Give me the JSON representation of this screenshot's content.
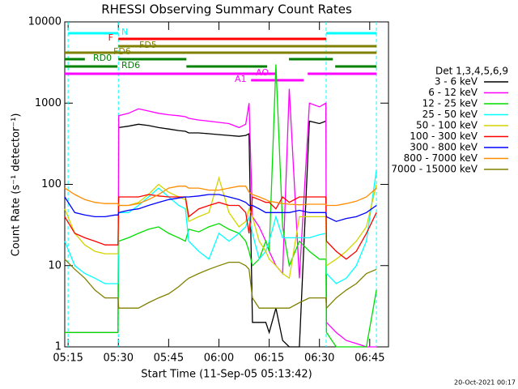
{
  "chart_data": {
    "type": "line",
    "title": "RHESSI Observing Summary Count Rates",
    "xlabel": "Start Time (11-Sep-05 05:13:42)",
    "ylabel": "Count Rate (s⁻¹ detector⁻¹)",
    "legend_title": "Det 1,3,4,5,6,9",
    "timestamp": "20-Oct-2021 00:17",
    "yscale": "log",
    "xlim": [
      14,
      110.6
    ],
    "ylim": [
      1,
      10000
    ],
    "yticks": [
      1,
      10,
      100,
      1000,
      10000
    ],
    "xticks": [
      {
        "value": 15,
        "label": "05:15"
      },
      {
        "value": 30,
        "label": "05:30"
      },
      {
        "value": 45,
        "label": "05:45"
      },
      {
        "value": 60,
        "label": "06:00"
      },
      {
        "value": 75,
        "label": "06:15"
      },
      {
        "value": 90,
        "label": "06:30"
      },
      {
        "value": 105,
        "label": "06:45"
      }
    ],
    "x": [
      14,
      17,
      20,
      23,
      26,
      29,
      29.9,
      30.1,
      33,
      36,
      39,
      42,
      45,
      48,
      50,
      51,
      54,
      57,
      60,
      63,
      66,
      68,
      69,
      70,
      72,
      74,
      75,
      77,
      79,
      81,
      84,
      87,
      90,
      91.9,
      92.1,
      95,
      98,
      101,
      104,
      107
    ],
    "series": [
      {
        "name": "3 - 6 keV",
        "color": "#000000",
        "values": [
          null,
          null,
          null,
          null,
          null,
          null,
          null,
          500,
          520,
          550,
          530,
          500,
          480,
          460,
          450,
          430,
          430,
          420,
          410,
          400,
          390,
          400,
          420,
          2,
          2,
          2,
          1.5,
          3,
          1.2,
          1,
          1,
          600,
          560,
          600,
          null,
          null,
          null,
          null,
          null,
          null
        ]
      },
      {
        "name": "6 - 12 keV",
        "color": "#ff00ff",
        "values": [
          1.5,
          1.5,
          1.5,
          1.5,
          1.5,
          1.5,
          1.5,
          700,
          750,
          850,
          800,
          750,
          720,
          700,
          680,
          650,
          620,
          600,
          580,
          560,
          500,
          550,
          1000,
          40,
          30,
          20,
          15,
          10,
          8,
          1500,
          7,
          1000,
          900,
          1000,
          2,
          1.5,
          1.2,
          1.1,
          1,
          1
        ]
      },
      {
        "name": "12 - 25 keV",
        "color": "#00dd00",
        "values": [
          1.5,
          1.5,
          1.5,
          1.5,
          1.5,
          1.5,
          1.5,
          20,
          22,
          25,
          28,
          30,
          25,
          22,
          20,
          28,
          26,
          30,
          33,
          28,
          25,
          20,
          15,
          10,
          12,
          20,
          15,
          3000,
          30,
          10,
          20,
          15,
          12,
          12,
          1.5,
          1,
          1,
          1,
          1,
          5
        ]
      },
      {
        "name": "25 - 50 keV",
        "color": "#00ffff",
        "values": [
          20,
          10,
          8,
          7,
          6,
          6,
          6,
          45,
          45,
          55,
          70,
          90,
          70,
          55,
          50,
          20,
          15,
          12,
          25,
          20,
          25,
          30,
          40,
          25,
          12,
          15,
          20,
          40,
          22,
          22,
          22,
          22,
          24,
          25,
          8,
          6,
          7,
          10,
          20,
          150
        ]
      },
      {
        "name": "50 - 100 keV",
        "color": "#d4d400",
        "values": [
          50,
          25,
          18,
          15,
          14,
          14,
          14,
          55,
          55,
          60,
          75,
          100,
          80,
          70,
          65,
          35,
          40,
          45,
          120,
          45,
          30,
          35,
          50,
          40,
          20,
          15,
          12,
          10,
          8,
          7,
          40,
          40,
          40,
          40,
          10,
          12,
          15,
          20,
          30,
          100
        ]
      },
      {
        "name": "100 - 300 keV",
        "color": "#ff0000",
        "values": [
          40,
          25,
          22,
          20,
          18,
          18,
          18,
          70,
          70,
          70,
          75,
          72,
          70,
          70,
          70,
          40,
          50,
          55,
          60,
          55,
          55,
          45,
          25,
          70,
          65,
          60,
          60,
          50,
          70,
          60,
          70,
          70,
          70,
          70,
          20,
          15,
          12,
          15,
          25,
          45
        ]
      },
      {
        "name": "300 - 800 keV",
        "color": "#0000ff",
        "values": [
          70,
          45,
          42,
          40,
          40,
          42,
          42,
          45,
          48,
          50,
          55,
          60,
          65,
          68,
          70,
          70,
          72,
          75,
          75,
          70,
          65,
          60,
          55,
          55,
          50,
          45,
          45,
          45,
          45,
          45,
          48,
          45,
          45,
          45,
          40,
          35,
          38,
          40,
          45,
          55
        ]
      },
      {
        "name": "800 - 7000 keV",
        "color": "#ff8c00",
        "values": [
          90,
          75,
          65,
          60,
          58,
          58,
          58,
          55,
          55,
          58,
          65,
          75,
          90,
          95,
          95,
          90,
          90,
          85,
          85,
          90,
          95,
          95,
          80,
          75,
          70,
          65,
          62,
          60,
          58,
          57,
          56,
          57,
          57,
          57,
          55,
          55,
          58,
          62,
          70,
          90
        ]
      },
      {
        "name": "7000 - 15000 keV",
        "color": "#808000",
        "values": [
          12,
          9,
          7,
          5,
          4,
          4,
          4,
          3,
          3,
          3,
          3.5,
          4,
          4.5,
          5.5,
          6.5,
          7,
          8,
          9,
          10,
          11,
          11,
          10,
          9,
          4,
          3,
          3,
          3,
          3,
          3,
          3,
          3.5,
          4,
          4,
          4,
          3,
          4,
          5,
          6,
          8,
          9
        ]
      }
    ],
    "flags": [
      {
        "name": "N",
        "color": "#00ffff",
        "segments": [
          [
            15,
            30
          ],
          [
            92,
            107
          ]
        ]
      },
      {
        "name": "F",
        "color": "#ff0000",
        "segments": [
          [
            30,
            92
          ]
        ]
      },
      {
        "name": "FD5",
        "color": "#808000",
        "segments": [
          [
            30,
            107
          ]
        ]
      },
      {
        "name": "FD6",
        "color": "#808000",
        "segments": [
          [
            14,
            107
          ]
        ]
      },
      {
        "name": "RD0",
        "color": "#008000",
        "segments": [
          [
            14,
            20
          ],
          [
            30,
            50.3
          ],
          [
            80.9,
            94
          ]
        ]
      },
      {
        "name": "RD6",
        "color": "#008000",
        "segments": [
          [
            14,
            29.7
          ],
          [
            50.3,
            74.4
          ],
          [
            94.7,
            107
          ]
        ]
      },
      {
        "name": "AO",
        "color": "#ff00ff",
        "segments": [
          [
            14,
            76.8
          ],
          [
            86.5,
            107
          ]
        ]
      },
      {
        "name": "A1",
        "color": "#ff00ff",
        "segments": [
          [
            69.6,
            85.3
          ]
        ]
      }
    ]
  }
}
